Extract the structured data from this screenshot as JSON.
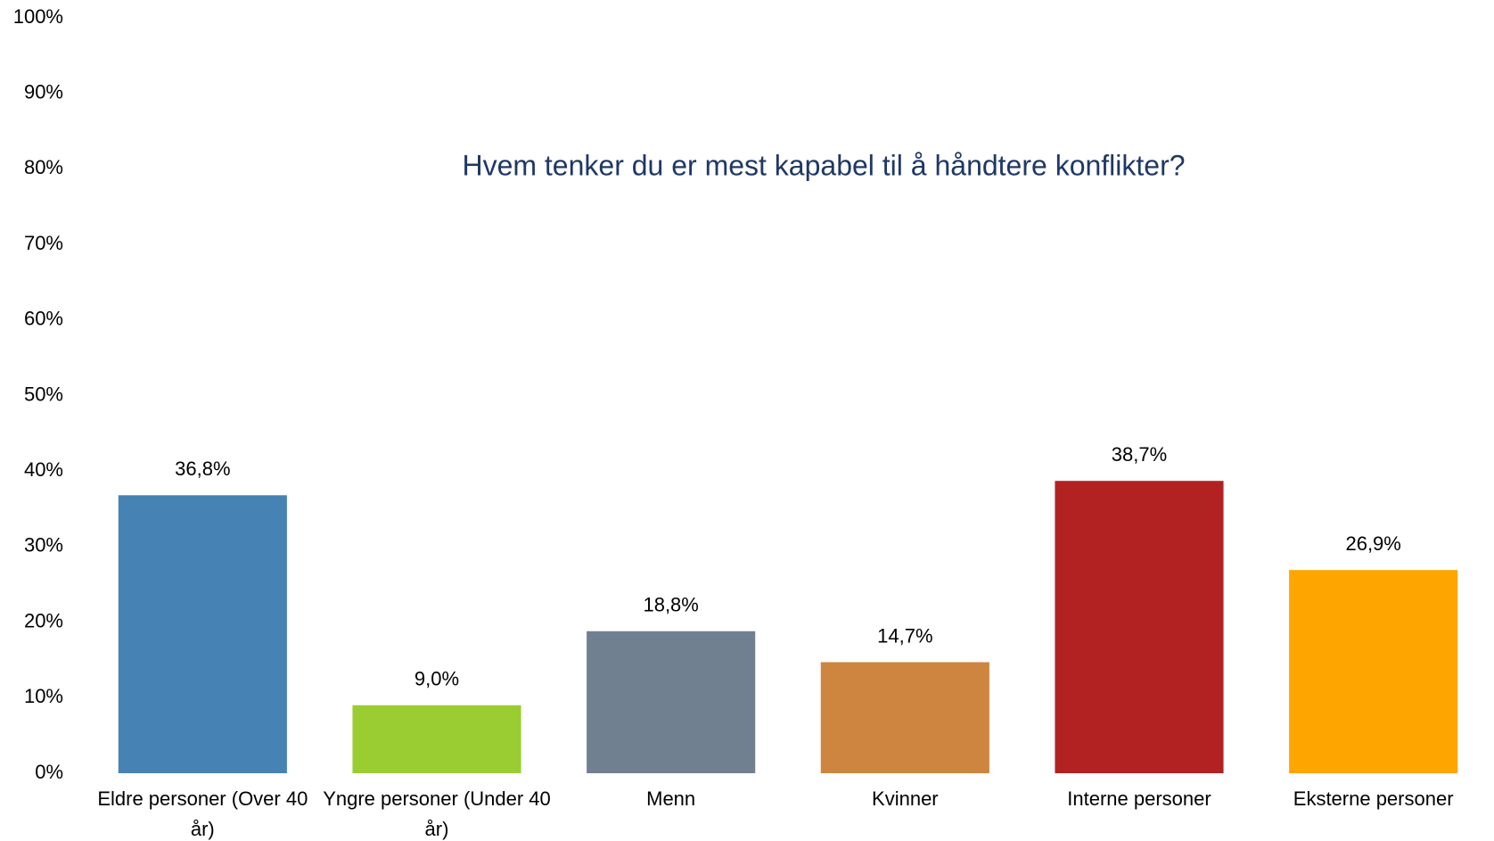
{
  "chart_data": {
    "type": "bar",
    "title": "Hvem tenker du er mest kapabel til å håndtere konflikter?",
    "categories": [
      "Eldre personer (Over 40 år)",
      "Yngre personer (Under 40 år)",
      "Menn",
      "Kvinner",
      "Interne personer",
      "Eksterne personer"
    ],
    "values": [
      36.8,
      9.0,
      18.8,
      14.7,
      38.7,
      26.9
    ],
    "value_labels": [
      "36,8%",
      "9,0%",
      "18,8%",
      "14,7%",
      "38,7%",
      "26,9%"
    ],
    "colors": [
      "#4682b4",
      "#9acd32",
      "#708090",
      "#cd853f",
      "#b22222",
      "#ffa500"
    ],
    "ylim": [
      0,
      100
    ],
    "yticks": [
      {
        "value": 0,
        "label": "0%"
      },
      {
        "value": 10,
        "label": "10%"
      },
      {
        "value": 20,
        "label": "20%"
      },
      {
        "value": 30,
        "label": "30%"
      },
      {
        "value": 40,
        "label": "40%"
      },
      {
        "value": 50,
        "label": "50%"
      },
      {
        "value": 60,
        "label": "60%"
      },
      {
        "value": 70,
        "label": "70%"
      },
      {
        "value": 80,
        "label": "80%"
      },
      {
        "value": 90,
        "label": "90%"
      },
      {
        "value": 100,
        "label": "100%"
      }
    ],
    "grid": false
  }
}
